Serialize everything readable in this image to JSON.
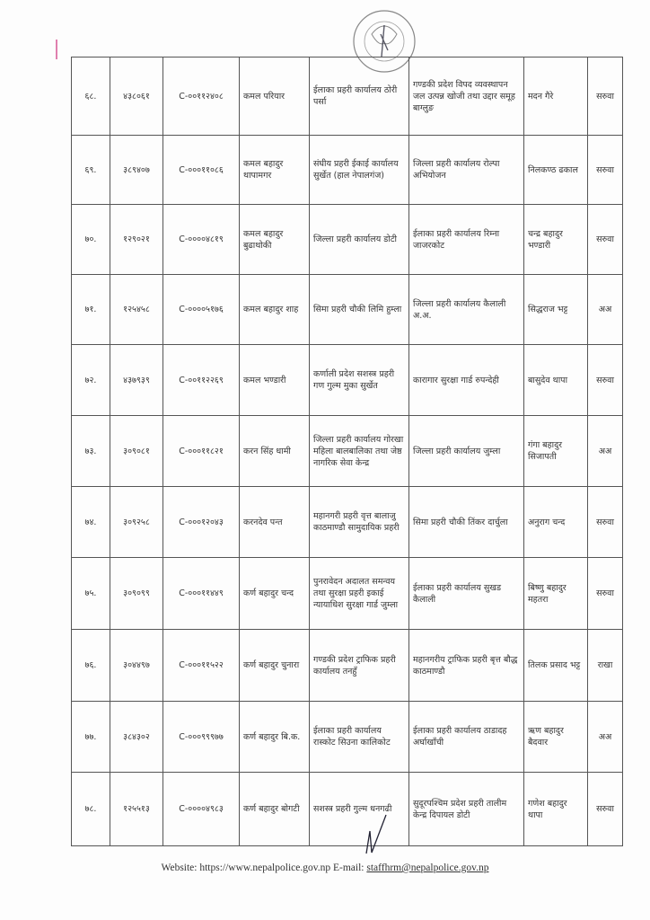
{
  "seal": {
    "text": "नेपाल सरकार प्रहरी प्रधान कार्यालय"
  },
  "rows": [
    {
      "sn": "६८.",
      "id": "४३८०६१",
      "code": "C-००११२४०८",
      "name": "कमल परियार",
      "from": "ईलाका प्रहरी कार्यालय ठोरी पर्सा",
      "to": "गण्डकी प्रदेश विपद व्यवस्थापन जल उत्पन्न खोजी तथा उद्दार समूह बाग्लुङ",
      "replacement": "मदन गैरे",
      "type": "सरुवा"
    },
    {
      "sn": "६९.",
      "id": "३८९४०७",
      "code": "C-०००११०८६",
      "name": "कमल बहादुर थापामगर",
      "from": "संघीय प्रहरी ईकाई कार्यालय सुर्खेत (हाल नेपालगंज)",
      "to": "जिल्ला प्रहरी कार्यालय रोल्पा अभियोजन",
      "replacement": "निलकण्ठ ढकाल",
      "type": "सरुवा"
    },
    {
      "sn": "७०.",
      "id": "१२९०२१",
      "code": "C-००००४८१९",
      "name": "कमल बहादुर बुढाथोकी",
      "from": "जिल्ला प्रहरी कार्यालय डोटी",
      "to": "ईलाका प्रहरी कार्यालय रिम्ना जाजरकोट",
      "replacement": "चन्द्र बहादुर भण्डारी",
      "type": "सरुवा"
    },
    {
      "sn": "७१.",
      "id": "१२५४५८",
      "code": "C-००००५१७६",
      "name": "कमल बहादुर शाह",
      "from": "सिमा प्रहरी चौकी लिमि हुम्ला",
      "to": "जिल्ला प्रहरी कार्यालय कैलाली अ.अ.",
      "replacement": "सिद्धराज भट्ट",
      "type": "अअ"
    },
    {
      "sn": "७२.",
      "id": "४३७९३९",
      "code": "C-००११२२६९",
      "name": "कमल भण्डारी",
      "from": "कर्णाली प्रदेश सशस्त्र प्रहरी गण गुल्म मुका सुर्खेत",
      "to": "कारागार सुरक्षा गार्ड रुपन्देही",
      "replacement": "बासुदेव थापा",
      "type": "सरुवा"
    },
    {
      "sn": "७३.",
      "id": "३०९०८१",
      "code": "C-०००११८२१",
      "name": "करन सिंह धामी",
      "from": "जिल्ला प्रहरी कार्यालय गोरखा महिला बालबालिका तथा जेष्ठ नागरिक सेवा केन्द्र",
      "to": "जिल्ला प्रहरी कार्यालय जुम्ला",
      "replacement": "गंगा बहादुर सिजापती",
      "type": "अअ"
    },
    {
      "sn": "७४.",
      "id": "३०९२५८",
      "code": "C-०००१२०४३",
      "name": "करनदेव पन्त",
      "from": "महानगरी प्रहरी वृत्त बालाजु काठमाण्डौ सामुदायिक प्रहरी",
      "to": "सिमा प्रहरी चौकी तिंकर दार्चुला",
      "replacement": "अनुराग चन्द",
      "type": "सरुवा"
    },
    {
      "sn": "७५.",
      "id": "३०९०९९",
      "code": "C-०००११४४९",
      "name": "कर्ण बहादुर चन्द",
      "from": "पुनरावेदन अदालत समन्वय तथा सुरक्षा प्रहरी इकाई न्यायाधिश सुरक्षा गार्ड जुम्ला",
      "to": "ईलाका प्रहरी कार्यालय सुखड कैलाली",
      "replacement": "बिष्णु बहादुर महतरा",
      "type": "सरुवा"
    },
    {
      "sn": "७६.",
      "id": "३०४४९७",
      "code": "C-०००११५२२",
      "name": "कर्ण बहादुर चुनारा",
      "from": "गण्डकी प्रदेश ट्राफिक प्रहरी कार्यालय तनहुँ",
      "to": "महानगरीय ट्राफिक प्रहरी बृत्त बौद्ध काठमाण्डौ",
      "replacement": "तिलक प्रसाद भट्ट",
      "type": "राखा"
    },
    {
      "sn": "७७.",
      "id": "३८४३०२",
      "code": "C-०००९९९७७",
      "name": "कर्ण बहादुर बि.क.",
      "from": "ईलाका प्रहरी कार्यालय रास्कोट सिउना कालिकोट",
      "to": "ईलाका प्रहरी कार्यालय ठाडादह अर्घाखाँची",
      "replacement": "ऋण बहादुर बैदवार",
      "type": "अअ"
    },
    {
      "sn": "७८.",
      "id": "१२५५१३",
      "code": "C-००००४९८३",
      "name": "कर्ण बहादुर बोगटी",
      "from": "सशस्त्र प्रहरी गुल्म धनगढी",
      "to": "सुदूरपश्चिम प्रदेश प्रहरी तालीम केन्द्र दिपायल डोटी",
      "replacement": "गणेश बहादुर थापा",
      "type": "सरुवा"
    }
  ],
  "footer": {
    "website_label": "Website: https://www.nepalpolice.gov.np E-mail: ",
    "email": "staffhrm@nepalpolice.gov.np"
  }
}
